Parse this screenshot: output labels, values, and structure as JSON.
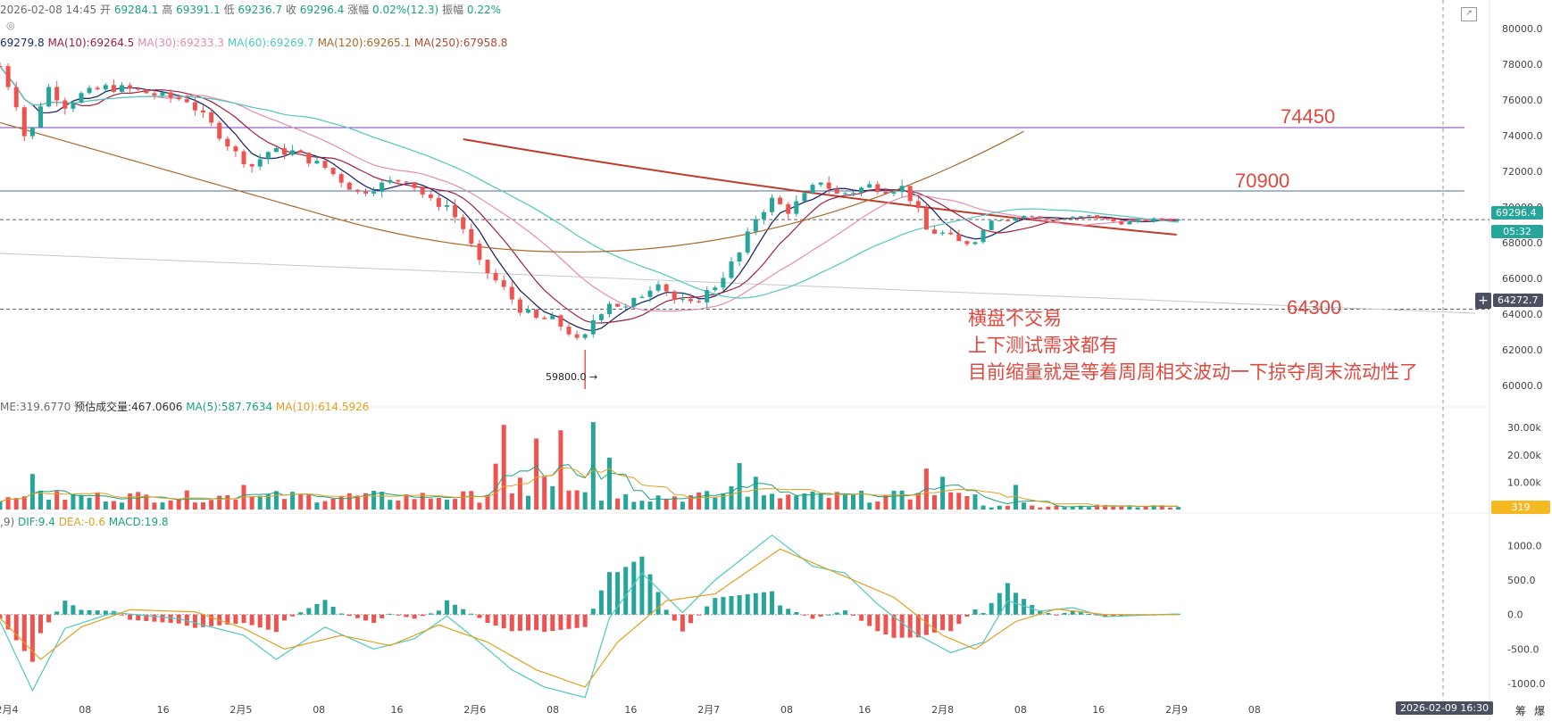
{
  "header": {
    "datetime": "2026-02-08 14:45",
    "open_label": "开",
    "open": "69284.1",
    "high_label": "高",
    "high": "69391.1",
    "low_label": "低",
    "low": "69236.7",
    "close_label": "收",
    "close": "69296.4",
    "change_label": "涨幅",
    "change": "0.02%(12.3)",
    "amp_label": "振幅",
    "amp": "0.22%"
  },
  "ma_legend": {
    "ma5": "69279.8",
    "ma10": "MA(10):69264.5",
    "ma30": "MA(30):69233.3",
    "ma60": "MA(60):69269.7",
    "ma120": "MA(120):69265.1",
    "ma250": "MA(250):67958.8"
  },
  "vol_legend": {
    "vol": "ME:319.6770",
    "est": "预估成交量:467.0606",
    "ma5": "MA(5):587.7634",
    "ma10": "MA(10):614.5926"
  },
  "macd_legend": {
    "params": ",9)",
    "dif": "DIF:9.4",
    "dea": "DEA:-0.6",
    "macd": "MACD:19.8"
  },
  "annotations": {
    "level_74450": "74450",
    "level_70900": "70900",
    "level_64300": "64300",
    "note_line1": "横盘不交易",
    "note_line2": "上下测试需求都有",
    "note_line3": "目前缩量就是等着周周相交波动一下掠夺周末流动性了",
    "low_marker": "59800.0"
  },
  "price_tags": {
    "last": "69296.4",
    "countdown": "05:32",
    "crosshair": "64272.7",
    "volume": "319"
  },
  "crosshair_time": "2026-02-09 16:30",
  "corner_labels": [
    "筹",
    "爆"
  ],
  "colors": {
    "up": "#26a69a",
    "down": "#ef5350",
    "ma5": "#1e2a6b",
    "ma10": "#a0203a",
    "ma30": "#e58cb0",
    "ma60": "#4fc9bc",
    "ma120": "#a8692a",
    "ma250": "#b2482f",
    "annotation": "#e0483f"
  },
  "chart_data": [
    {
      "type": "candlestick",
      "title": "",
      "y_axis_ticks": [
        "80000.0",
        "78000.0",
        "76000.0",
        "74000.0",
        "72000.0",
        "70000.0",
        "68000.0",
        "66000.0",
        "64000.0",
        "62000.0",
        "60000.0"
      ],
      "ylim": [
        59000,
        80500
      ],
      "x_ticks": [
        "2月4",
        "08",
        "16",
        "2月5",
        "08",
        "16",
        "2月6",
        "08",
        "16",
        "2月7",
        "08",
        "16",
        "2月8",
        "08",
        "16",
        "2月9",
        "08"
      ],
      "horizontal_levels": [
        74450,
        70900,
        69296.4,
        64272.7
      ],
      "close_path": [
        {
          "t": 0,
          "p": 77900
        },
        {
          "t": 2,
          "p": 75800
        },
        {
          "t": 3.4,
          "p": 73300
        },
        {
          "t": 4.5,
          "p": 75300
        },
        {
          "t": 6,
          "p": 76700
        },
        {
          "t": 8,
          "p": 75700
        },
        {
          "t": 10,
          "p": 76300
        },
        {
          "t": 13,
          "p": 76700
        },
        {
          "t": 16,
          "p": 76600
        },
        {
          "t": 20,
          "p": 76200
        },
        {
          "t": 23,
          "p": 76000
        },
        {
          "t": 26,
          "p": 74600
        },
        {
          "t": 29,
          "p": 73000
        },
        {
          "t": 31,
          "p": 72300
        },
        {
          "t": 33,
          "p": 73100
        },
        {
          "t": 36,
          "p": 73100
        },
        {
          "t": 40,
          "p": 72200
        },
        {
          "t": 44,
          "p": 70800
        },
        {
          "t": 48,
          "p": 71400
        },
        {
          "t": 50,
          "p": 71600
        },
        {
          "t": 53,
          "p": 70300
        },
        {
          "t": 55,
          "p": 70100
        },
        {
          "t": 57,
          "p": 68800
        },
        {
          "t": 59,
          "p": 66800
        },
        {
          "t": 62,
          "p": 65400
        },
        {
          "t": 64,
          "p": 64300
        },
        {
          "t": 66,
          "p": 63700
        },
        {
          "t": 68,
          "p": 63700
        },
        {
          "t": 70,
          "p": 63000
        },
        {
          "t": 71.5,
          "p": 62200
        },
        {
          "t": 73,
          "p": 63700
        },
        {
          "t": 75,
          "p": 64700
        },
        {
          "t": 77,
          "p": 64300
        },
        {
          "t": 79,
          "p": 65100
        },
        {
          "t": 81,
          "p": 65900
        },
        {
          "t": 83,
          "p": 64800
        },
        {
          "t": 85,
          "p": 64500
        },
        {
          "t": 88,
          "p": 65600
        },
        {
          "t": 91,
          "p": 67400
        },
        {
          "t": 93,
          "p": 69400
        },
        {
          "t": 95,
          "p": 70400
        },
        {
          "t": 97,
          "p": 69800
        },
        {
          "t": 99,
          "p": 70600
        },
        {
          "t": 101,
          "p": 71500
        },
        {
          "t": 103,
          "p": 70700
        },
        {
          "t": 105,
          "p": 70900
        },
        {
          "t": 107,
          "p": 71200
        },
        {
          "t": 109,
          "p": 71000
        },
        {
          "t": 111,
          "p": 71100
        },
        {
          "t": 112.5,
          "p": 70200
        },
        {
          "t": 114,
          "p": 68700
        },
        {
          "t": 116,
          "p": 68500
        },
        {
          "t": 118,
          "p": 68000
        },
        {
          "t": 120,
          "p": 68100
        },
        {
          "t": 122,
          "p": 69300
        },
        {
          "t": 124,
          "p": 69300
        },
        {
          "t": 126,
          "p": 69500
        },
        {
          "t": 130,
          "p": 69300
        },
        {
          "t": 134,
          "p": 69500
        },
        {
          "t": 138,
          "p": 69100
        },
        {
          "t": 142,
          "p": 69300
        },
        {
          "t": 144.8,
          "p": 69296.4
        }
      ],
      "low_marker": {
        "t": 72,
        "p": 59800.0
      }
    },
    {
      "type": "bar",
      "title": "",
      "y_axis_ticks": [
        "30.00k",
        "20.00k",
        "10.00k"
      ],
      "ylim": [
        0,
        33000
      ],
      "spikes": [
        {
          "t": 4,
          "v": 13000
        },
        {
          "t": 30,
          "v": 9000
        },
        {
          "t": 62,
          "v": 31000
        },
        {
          "t": 66,
          "v": 26000
        },
        {
          "t": 69,
          "v": 29000
        },
        {
          "t": 73,
          "v": 32000
        },
        {
          "t": 75,
          "v": 19000
        },
        {
          "t": 91,
          "v": 17000
        },
        {
          "t": 93,
          "v": 12000
        },
        {
          "t": 114,
          "v": 15000
        },
        {
          "t": 116,
          "v": 12000
        },
        {
          "t": 125,
          "v": 9000
        }
      ],
      "last_value": "319"
    },
    {
      "type": "bar",
      "title": "",
      "series_names": [
        "DIF",
        "DEA",
        "MACD"
      ],
      "y_axis_ticks": [
        "1000.0",
        "500.0",
        "0.0",
        "-500.0",
        "-1000.0"
      ],
      "ylim": [
        -1050,
        1250
      ],
      "dif_path": [
        {
          "t": 0,
          "p": -100
        },
        {
          "t": 4,
          "p": -1100
        },
        {
          "t": 8,
          "p": -200
        },
        {
          "t": 14,
          "p": 30
        },
        {
          "t": 22,
          "p": -60
        },
        {
          "t": 30,
          "p": -300
        },
        {
          "t": 34,
          "p": -650
        },
        {
          "t": 40,
          "p": -180
        },
        {
          "t": 46,
          "p": -500
        },
        {
          "t": 51,
          "p": -350
        },
        {
          "t": 55,
          "p": -20
        },
        {
          "t": 59,
          "p": -400
        },
        {
          "t": 63,
          "p": -800
        },
        {
          "t": 67,
          "p": -1050
        },
        {
          "t": 72,
          "p": -1200
        },
        {
          "t": 75,
          "p": -50
        },
        {
          "t": 79,
          "p": 600
        },
        {
          "t": 84,
          "p": 30
        },
        {
          "t": 88,
          "p": 500
        },
        {
          "t": 95,
          "p": 1150
        },
        {
          "t": 100,
          "p": 700
        },
        {
          "t": 104,
          "p": 600
        },
        {
          "t": 108,
          "p": 150
        },
        {
          "t": 113,
          "p": -300
        },
        {
          "t": 117,
          "p": -550
        },
        {
          "t": 121,
          "p": -400
        },
        {
          "t": 124,
          "p": 200
        },
        {
          "t": 128,
          "p": 50
        },
        {
          "t": 132,
          "p": 100
        },
        {
          "t": 136,
          "p": -30
        },
        {
          "t": 144.8,
          "p": 9.4
        }
      ],
      "dea_path": [
        {
          "t": 0,
          "p": -50
        },
        {
          "t": 5,
          "p": -650
        },
        {
          "t": 10,
          "p": -180
        },
        {
          "t": 16,
          "p": 70
        },
        {
          "t": 24,
          "p": 40
        },
        {
          "t": 30,
          "p": -200
        },
        {
          "t": 35,
          "p": -500
        },
        {
          "t": 42,
          "p": -300
        },
        {
          "t": 48,
          "p": -450
        },
        {
          "t": 54,
          "p": -150
        },
        {
          "t": 60,
          "p": -400
        },
        {
          "t": 66,
          "p": -800
        },
        {
          "t": 72,
          "p": -1050
        },
        {
          "t": 76,
          "p": -400
        },
        {
          "t": 82,
          "p": 200
        },
        {
          "t": 88,
          "p": 300
        },
        {
          "t": 96,
          "p": 950
        },
        {
          "t": 104,
          "p": 550
        },
        {
          "t": 110,
          "p": 250
        },
        {
          "t": 116,
          "p": -300
        },
        {
          "t": 120,
          "p": -500
        },
        {
          "t": 125,
          "p": -100
        },
        {
          "t": 130,
          "p": 80
        },
        {
          "t": 136,
          "p": 0
        },
        {
          "t": 144.8,
          "p": -0.6
        }
      ],
      "macd_last": 19.8
    }
  ]
}
